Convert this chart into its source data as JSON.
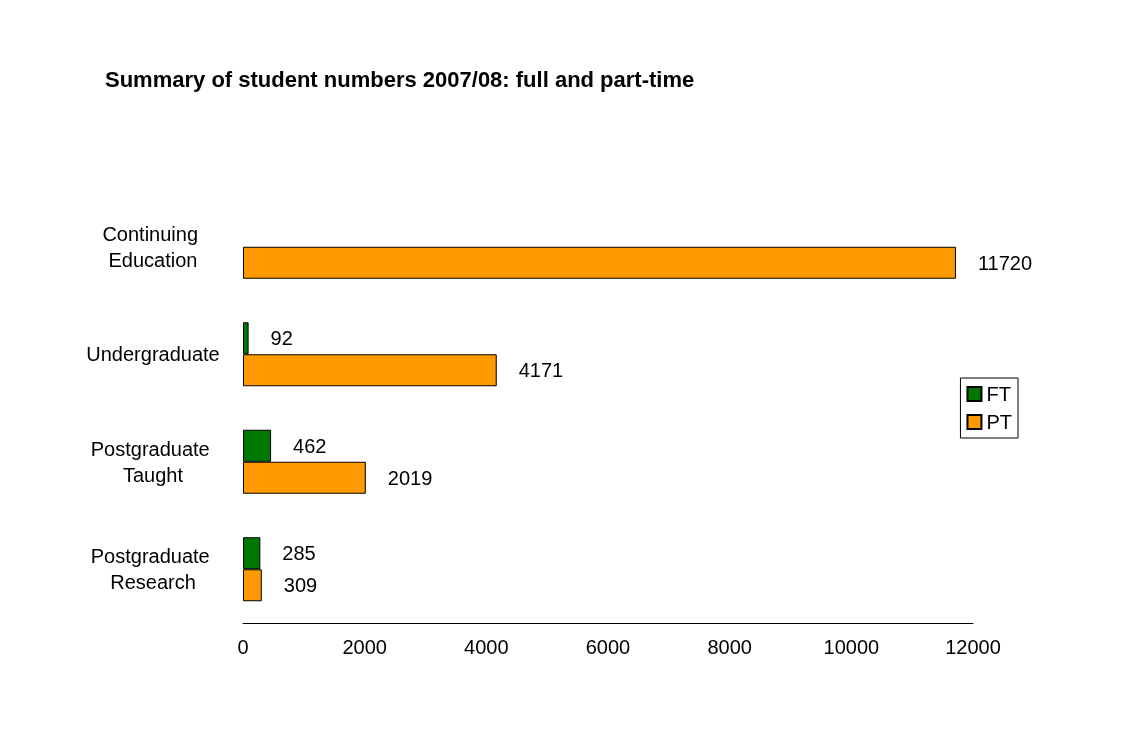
{
  "chart_data": {
    "type": "bar",
    "orientation": "horizontal",
    "title": "Summary of student numbers 2007/08: full and part-time",
    "categories": [
      "Continuing Education",
      "Undergraduate",
      "Postgraduate Taught",
      "Postgraduate Research"
    ],
    "series": [
      {
        "name": "FT",
        "color": "#007800",
        "values": [
          null,
          92,
          462,
          285
        ]
      },
      {
        "name": "PT",
        "color": "#ff9900",
        "values": [
          11720,
          4171,
          2019,
          309
        ]
      }
    ],
    "xlim": [
      0,
      12000
    ],
    "xticks": [
      0,
      2000,
      4000,
      6000,
      8000,
      10000,
      12000
    ],
    "grid": false,
    "legend": "right",
    "data_labels": true
  }
}
